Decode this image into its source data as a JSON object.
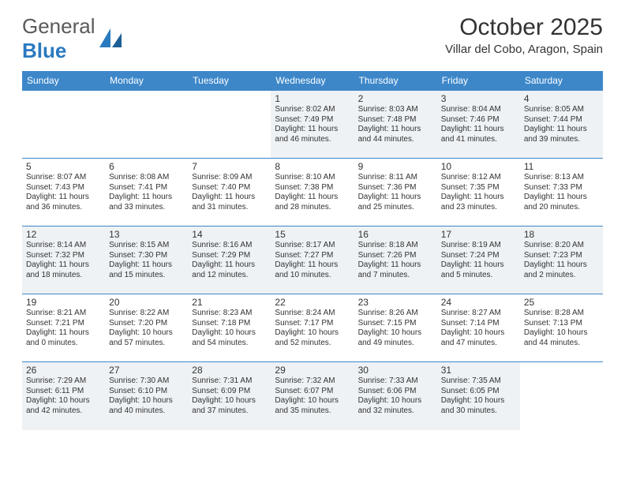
{
  "logo": {
    "line1": "General",
    "line2": "Blue"
  },
  "title": "October 2025",
  "location": "Villar del Cobo, Aragon, Spain",
  "colors": {
    "header_bg": "#3d87c9",
    "header_text": "#ffffff",
    "cell_border": "#3d87c9",
    "shade_bg": "#eef2f5",
    "text": "#333333",
    "logo_accent": "#2a7ac0"
  },
  "weekdays": [
    "Sunday",
    "Monday",
    "Tuesday",
    "Wednesday",
    "Thursday",
    "Friday",
    "Saturday"
  ],
  "weeks": [
    [
      null,
      null,
      null,
      {
        "d": "1",
        "sr": "Sunrise: 8:02 AM",
        "ss": "Sunset: 7:49 PM",
        "dl": "Daylight: 11 hours and 46 minutes."
      },
      {
        "d": "2",
        "sr": "Sunrise: 8:03 AM",
        "ss": "Sunset: 7:48 PM",
        "dl": "Daylight: 11 hours and 44 minutes."
      },
      {
        "d": "3",
        "sr": "Sunrise: 8:04 AM",
        "ss": "Sunset: 7:46 PM",
        "dl": "Daylight: 11 hours and 41 minutes."
      },
      {
        "d": "4",
        "sr": "Sunrise: 8:05 AM",
        "ss": "Sunset: 7:44 PM",
        "dl": "Daylight: 11 hours and 39 minutes."
      }
    ],
    [
      {
        "d": "5",
        "sr": "Sunrise: 8:07 AM",
        "ss": "Sunset: 7:43 PM",
        "dl": "Daylight: 11 hours and 36 minutes."
      },
      {
        "d": "6",
        "sr": "Sunrise: 8:08 AM",
        "ss": "Sunset: 7:41 PM",
        "dl": "Daylight: 11 hours and 33 minutes."
      },
      {
        "d": "7",
        "sr": "Sunrise: 8:09 AM",
        "ss": "Sunset: 7:40 PM",
        "dl": "Daylight: 11 hours and 31 minutes."
      },
      {
        "d": "8",
        "sr": "Sunrise: 8:10 AM",
        "ss": "Sunset: 7:38 PM",
        "dl": "Daylight: 11 hours and 28 minutes."
      },
      {
        "d": "9",
        "sr": "Sunrise: 8:11 AM",
        "ss": "Sunset: 7:36 PM",
        "dl": "Daylight: 11 hours and 25 minutes."
      },
      {
        "d": "10",
        "sr": "Sunrise: 8:12 AM",
        "ss": "Sunset: 7:35 PM",
        "dl": "Daylight: 11 hours and 23 minutes."
      },
      {
        "d": "11",
        "sr": "Sunrise: 8:13 AM",
        "ss": "Sunset: 7:33 PM",
        "dl": "Daylight: 11 hours and 20 minutes."
      }
    ],
    [
      {
        "d": "12",
        "sr": "Sunrise: 8:14 AM",
        "ss": "Sunset: 7:32 PM",
        "dl": "Daylight: 11 hours and 18 minutes."
      },
      {
        "d": "13",
        "sr": "Sunrise: 8:15 AM",
        "ss": "Sunset: 7:30 PM",
        "dl": "Daylight: 11 hours and 15 minutes."
      },
      {
        "d": "14",
        "sr": "Sunrise: 8:16 AM",
        "ss": "Sunset: 7:29 PM",
        "dl": "Daylight: 11 hours and 12 minutes."
      },
      {
        "d": "15",
        "sr": "Sunrise: 8:17 AM",
        "ss": "Sunset: 7:27 PM",
        "dl": "Daylight: 11 hours and 10 minutes."
      },
      {
        "d": "16",
        "sr": "Sunrise: 8:18 AM",
        "ss": "Sunset: 7:26 PM",
        "dl": "Daylight: 11 hours and 7 minutes."
      },
      {
        "d": "17",
        "sr": "Sunrise: 8:19 AM",
        "ss": "Sunset: 7:24 PM",
        "dl": "Daylight: 11 hours and 5 minutes."
      },
      {
        "d": "18",
        "sr": "Sunrise: 8:20 AM",
        "ss": "Sunset: 7:23 PM",
        "dl": "Daylight: 11 hours and 2 minutes."
      }
    ],
    [
      {
        "d": "19",
        "sr": "Sunrise: 8:21 AM",
        "ss": "Sunset: 7:21 PM",
        "dl": "Daylight: 11 hours and 0 minutes."
      },
      {
        "d": "20",
        "sr": "Sunrise: 8:22 AM",
        "ss": "Sunset: 7:20 PM",
        "dl": "Daylight: 10 hours and 57 minutes."
      },
      {
        "d": "21",
        "sr": "Sunrise: 8:23 AM",
        "ss": "Sunset: 7:18 PM",
        "dl": "Daylight: 10 hours and 54 minutes."
      },
      {
        "d": "22",
        "sr": "Sunrise: 8:24 AM",
        "ss": "Sunset: 7:17 PM",
        "dl": "Daylight: 10 hours and 52 minutes."
      },
      {
        "d": "23",
        "sr": "Sunrise: 8:26 AM",
        "ss": "Sunset: 7:15 PM",
        "dl": "Daylight: 10 hours and 49 minutes."
      },
      {
        "d": "24",
        "sr": "Sunrise: 8:27 AM",
        "ss": "Sunset: 7:14 PM",
        "dl": "Daylight: 10 hours and 47 minutes."
      },
      {
        "d": "25",
        "sr": "Sunrise: 8:28 AM",
        "ss": "Sunset: 7:13 PM",
        "dl": "Daylight: 10 hours and 44 minutes."
      }
    ],
    [
      {
        "d": "26",
        "sr": "Sunrise: 7:29 AM",
        "ss": "Sunset: 6:11 PM",
        "dl": "Daylight: 10 hours and 42 minutes."
      },
      {
        "d": "27",
        "sr": "Sunrise: 7:30 AM",
        "ss": "Sunset: 6:10 PM",
        "dl": "Daylight: 10 hours and 40 minutes."
      },
      {
        "d": "28",
        "sr": "Sunrise: 7:31 AM",
        "ss": "Sunset: 6:09 PM",
        "dl": "Daylight: 10 hours and 37 minutes."
      },
      {
        "d": "29",
        "sr": "Sunrise: 7:32 AM",
        "ss": "Sunset: 6:07 PM",
        "dl": "Daylight: 10 hours and 35 minutes."
      },
      {
        "d": "30",
        "sr": "Sunrise: 7:33 AM",
        "ss": "Sunset: 6:06 PM",
        "dl": "Daylight: 10 hours and 32 minutes."
      },
      {
        "d": "31",
        "sr": "Sunrise: 7:35 AM",
        "ss": "Sunset: 6:05 PM",
        "dl": "Daylight: 10 hours and 30 minutes."
      },
      null
    ]
  ]
}
